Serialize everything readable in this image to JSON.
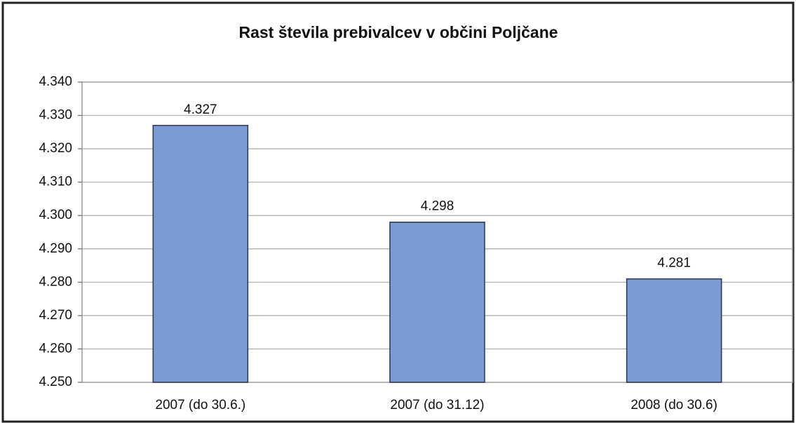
{
  "chart_data": {
    "type": "bar",
    "title": "Rast števila prebivalcev v občini Poljčane",
    "categories": [
      "2007 (do 30.6.)",
      "2007 (do 31.12)",
      "2008 (do 30.6)"
    ],
    "values": [
      4327,
      4298,
      4281
    ],
    "value_labels": [
      "4.327",
      "4.298",
      "4.281"
    ],
    "color": "#7b9bd6",
    "ylim": [
      4250,
      4340
    ],
    "yticks": [
      {
        "value": 4250,
        "label": "4.250"
      },
      {
        "value": 4260,
        "label": "4.260"
      },
      {
        "value": 4270,
        "label": "4.270"
      },
      {
        "value": 4280,
        "label": "4.280"
      },
      {
        "value": 4290,
        "label": "4.290"
      },
      {
        "value": 4300,
        "label": "4.300"
      },
      {
        "value": 4310,
        "label": "4.310"
      },
      {
        "value": 4320,
        "label": "4.320"
      },
      {
        "value": 4330,
        "label": "4.330"
      },
      {
        "value": 4340,
        "label": "4.340"
      }
    ],
    "grid": true
  }
}
